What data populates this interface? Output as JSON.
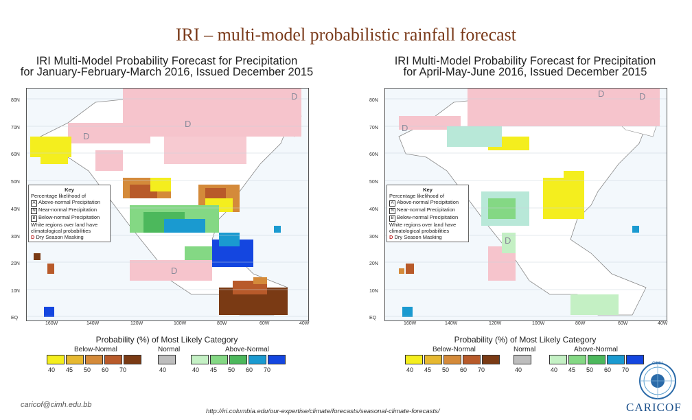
{
  "slide_title": "IRI – multi-model probabilistic rainfall forecast",
  "maps": [
    {
      "title_line1": "IRI Multi-Model Probability Forecast for Precipitation",
      "title_line2": "for January-February-March 2016, Issued December 2015"
    },
    {
      "title_line1": "IRI Multi-Model Probability Forecast for Precipitation",
      "title_line2": "for April-May-June 2016, Issued December 2015"
    }
  ],
  "lat_labels": [
    "80N",
    "70N",
    "60N",
    "50N",
    "40N",
    "30N",
    "20N",
    "10N",
    "EQ"
  ],
  "lon_labels": [
    "160W",
    "140W",
    "120W",
    "100W",
    "80W",
    "60W",
    "40W"
  ],
  "key": {
    "title": "Key",
    "subtitle1": "Percentage likelihood of",
    "a": "Above-normal Precipitation",
    "n": "Near-normal Precipitation",
    "b": "Below-normal Precipitation",
    "white1": "White regions over land have",
    "white2": "climatological probabilities",
    "d": "Dry Season Masking",
    "a_letter": "A",
    "n_letter": "N",
    "b_letter": "B",
    "d_letter": "D"
  },
  "legend": {
    "title": "Probability (%) of Most Likely Category",
    "below": "Below-Normal",
    "normal": "Normal",
    "above": "Above-Normal",
    "below_ticks": [
      "40",
      "45",
      "50",
      "60",
      "70"
    ],
    "normal_ticks": [
      "40"
    ],
    "above_ticks": [
      "40",
      "45",
      "50",
      "60",
      "70"
    ],
    "below_colors": [
      "#f4ee1e",
      "#e6b830",
      "#d48a3a",
      "#b85a2a",
      "#7a3a14"
    ],
    "normal_colors": [
      "#bdbdbd"
    ],
    "above_colors": [
      "#c4f0c4",
      "#84d884",
      "#4cb85c",
      "#1a9ad0",
      "#1446e0"
    ]
  },
  "dry_mask_letter": "D",
  "footer": {
    "email": "caricof@cimh.edu.bb",
    "url": "http://iri.columbia.edu/our-expertise/climate/forecasts/seasonal-climate-forecasts/",
    "logo": "CARICOF",
    "logo_small": "CIMH"
  }
}
